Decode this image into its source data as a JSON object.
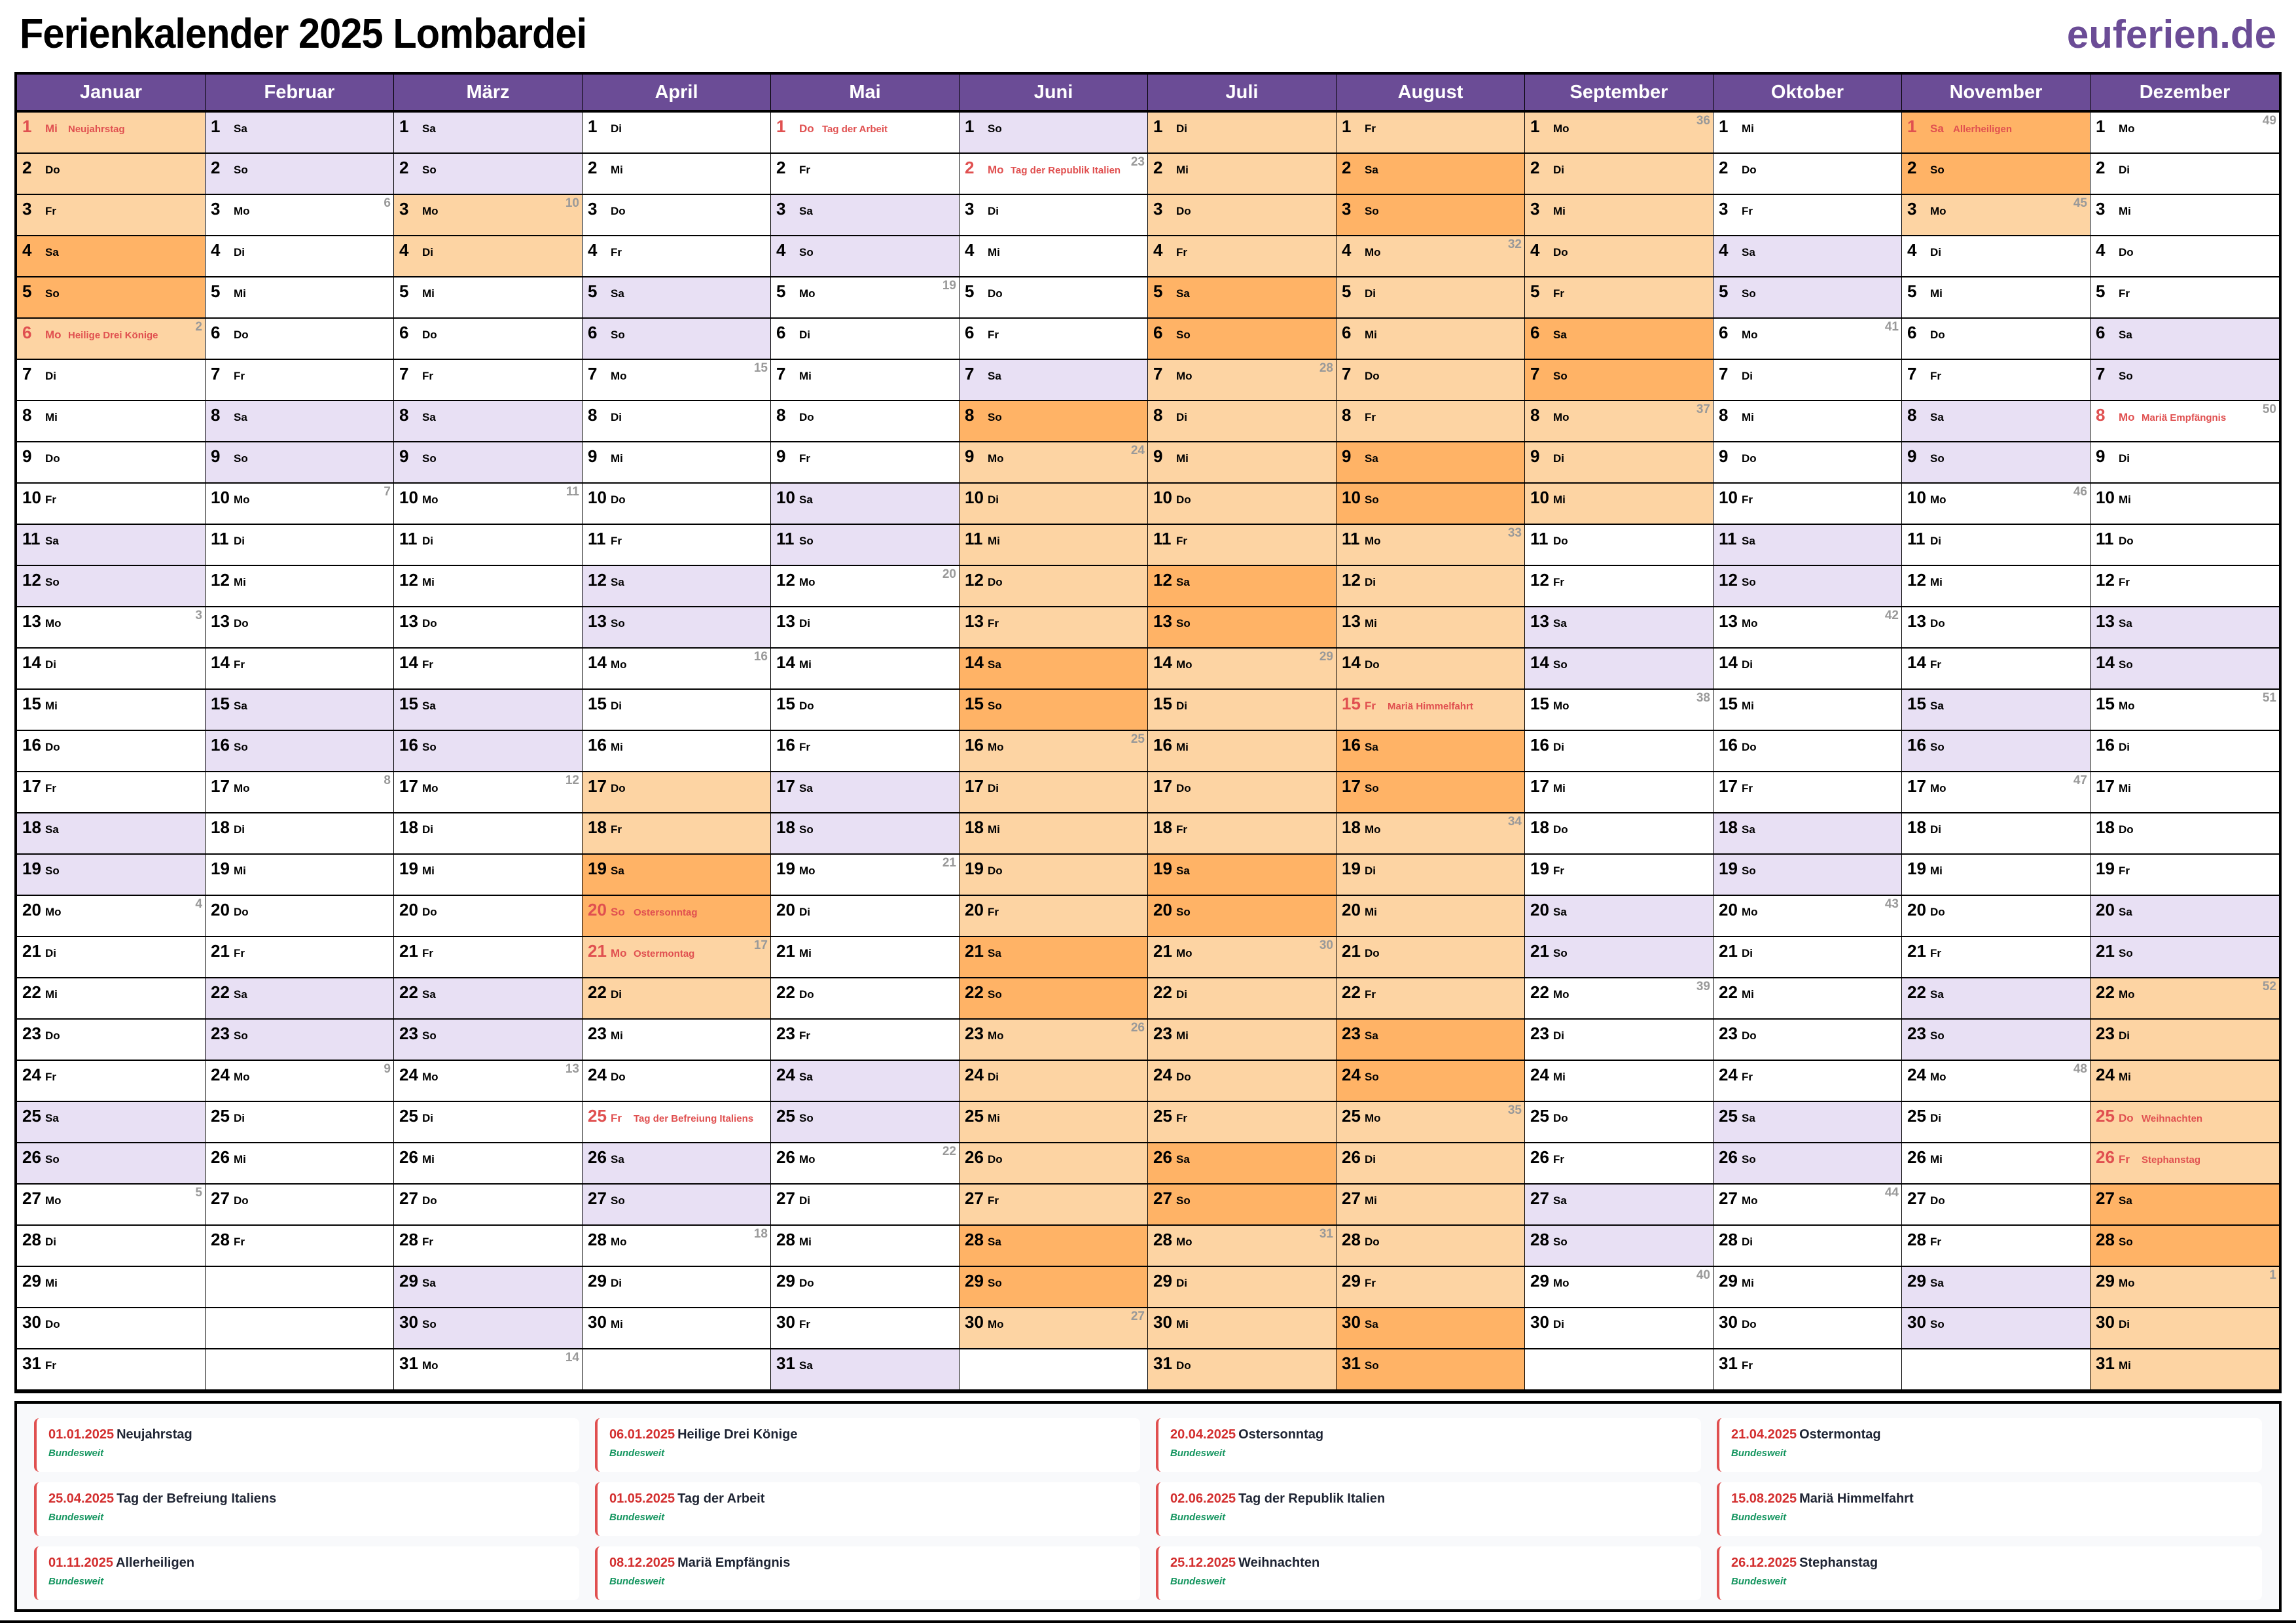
{
  "title": "Ferienkalender 2025 Lombardei",
  "logo": "euferien.de",
  "colors": {
    "header": "#6b4c96",
    "weekend": "#e8e0f4",
    "vacation": "#fdd4a3",
    "vacation_weekend": "#ffb366",
    "holiday_text": "#e05050",
    "week_number": "#999999"
  },
  "months": [
    {
      "name": "Januar",
      "wd": "Mi Do Fr Sa So Mo Di Mi Do Fr Sa So Mo Di Mi Do Fr Sa So Mo Di Mi Do Fr Sa So Mo Di Mi Do Fr",
      "kw": {
        "6": "2",
        "13": "3",
        "20": "4",
        "27": "5"
      },
      "holidays": {
        "1": "Neujahrstag",
        "6": "Heilige Drei Könige"
      },
      "vacation": [
        [
          1,
          6
        ]
      ]
    },
    {
      "name": "Februar",
      "wd": "Sa So Mo Di Mi Do Fr Sa So Mo Di Mi Do Fr Sa So Mo Di Mi Do Fr Sa So Mo Di Mi Do Fr",
      "kw": {
        "3": "6",
        "10": "7",
        "17": "8",
        "24": "9"
      },
      "holidays": {},
      "vacation": []
    },
    {
      "name": "März",
      "wd": "Sa So Mo Di Mi Do Fr Sa So Mo Di Mi Do Fr Sa So Mo Di Mi Do Fr Sa So Mo Di Mi Do Fr Sa So Mo",
      "kw": {
        "3": "10",
        "10": "11",
        "17": "12",
        "24": "13",
        "31": "14"
      },
      "holidays": {},
      "vacation": [
        [
          3,
          4
        ]
      ]
    },
    {
      "name": "April",
      "wd": "Di Mi Do Fr Sa So Mo Di Mi Do Fr Sa So Mo Di Mi Do Fr Sa So Mo Di Mi Do Fr Sa So Mo Di Mi",
      "kw": {
        "7": "15",
        "14": "16",
        "21": "17",
        "28": "18"
      },
      "holidays": {
        "20": "Ostersonntag",
        "21": "Ostermontag",
        "25": "Tag der Befreiung Italiens"
      },
      "vacation": [
        [
          17,
          22
        ]
      ]
    },
    {
      "name": "Mai",
      "wd": "Do Fr Sa So Mo Di Mi Do Fr Sa So Mo Di Mi Do Fr Sa So Mo Di Mi Do Fr Sa So Mo Di Mi Do Fr Sa",
      "kw": {
        "5": "19",
        "12": "20",
        "19": "21",
        "26": "22"
      },
      "holidays": {
        "1": "Tag der Arbeit"
      },
      "vacation": []
    },
    {
      "name": "Juni",
      "wd": "So Mo Di Mi Do Fr Sa So Mo Di Mi Do Fr Sa So Mo Di Mi Do Fr Sa So Mo Di Mi Do Fr Sa So Mo",
      "kw": {
        "2": "23",
        "9": "24",
        "16": "25",
        "23": "26",
        "30": "27"
      },
      "holidays": {
        "2": "Tag der Republik Italien"
      },
      "vacation": [
        [
          8,
          30
        ]
      ]
    },
    {
      "name": "Juli",
      "wd": "Di Mi Do Fr Sa So Mo Di Mi Do Fr Sa So Mo Di Mi Do Fr Sa So Mo Di Mi Do Fr Sa So Mo Di Mi Do",
      "kw": {
        "7": "28",
        "14": "29",
        "21": "30",
        "28": "31"
      },
      "holidays": {},
      "vacation": [
        [
          1,
          31
        ]
      ]
    },
    {
      "name": "August",
      "wd": "Fr Sa So Mo Di Mi Do Fr Sa So Mo Di Mi Do Fr Sa So Mo Di Mi Do Fr Sa So Mo Di Mi Do Fr Sa So",
      "kw": {
        "4": "32",
        "11": "33",
        "18": "34",
        "25": "35"
      },
      "holidays": {
        "15": "Mariä Himmelfahrt"
      },
      "vacation": [
        [
          1,
          31
        ]
      ]
    },
    {
      "name": "September",
      "wd": "Mo Di Mi Do Fr Sa So Mo Di Mi Do Fr Sa So Mo Di Mi Do Fr Sa So Mo Di Mi Do Fr Sa So Mo Di",
      "kw": {
        "1": "36",
        "8": "37",
        "15": "38",
        "22": "39",
        "29": "40"
      },
      "holidays": {},
      "vacation": [
        [
          1,
          10
        ]
      ]
    },
    {
      "name": "Oktober",
      "wd": "Mi Do Fr Sa So Mo Di Mi Do Fr Sa So Mo Di Mi Do Fr Sa So Mo Di Mi Do Fr Sa So Mo Di Mi Do Fr",
      "kw": {
        "6": "41",
        "13": "42",
        "20": "43",
        "27": "44"
      },
      "holidays": {},
      "vacation": []
    },
    {
      "name": "November",
      "wd": "Sa So Mo Di Mi Do Fr Sa So Mo Di Mi Do Fr Sa So Mo Di Mi Do Fr Sa So Mo Di Mi Do Fr Sa So",
      "kw": {
        "3": "45",
        "10": "46",
        "17": "47",
        "24": "48"
      },
      "holidays": {
        "1": "Allerheiligen"
      },
      "vacation": [
        [
          1,
          3
        ]
      ]
    },
    {
      "name": "Dezember",
      "wd": "Mo Di Mi Do Fr Sa So Mo Di Mi Do Fr Sa So Mo Di Mi Do Fr Sa So Mo Di Mi Do Fr Sa So Mo Di Mi",
      "kw": {
        "1": "49",
        "8": "50",
        "15": "51",
        "22": "52",
        "29": "1"
      },
      "holidays": {
        "8": "Mariä Empfängnis",
        "25": "Weihnachten",
        "26": "Stephanstag"
      },
      "vacation": [
        [
          22,
          31
        ]
      ]
    }
  ],
  "legend": [
    {
      "date": "01.01.2025",
      "name": "Neujahrstag",
      "region": "Bundesweit"
    },
    {
      "date": "06.01.2025",
      "name": "Heilige Drei Könige",
      "region": "Bundesweit"
    },
    {
      "date": "20.04.2025",
      "name": "Ostersonntag",
      "region": "Bundesweit"
    },
    {
      "date": "21.04.2025",
      "name": "Ostermontag",
      "region": "Bundesweit"
    },
    {
      "date": "25.04.2025",
      "name": "Tag der Befreiung Italiens",
      "region": "Bundesweit"
    },
    {
      "date": "01.05.2025",
      "name": "Tag der Arbeit",
      "region": "Bundesweit"
    },
    {
      "date": "02.06.2025",
      "name": "Tag der Republik Italien",
      "region": "Bundesweit"
    },
    {
      "date": "15.08.2025",
      "name": "Mariä Himmelfahrt",
      "region": "Bundesweit"
    },
    {
      "date": "01.11.2025",
      "name": "Allerheiligen",
      "region": "Bundesweit"
    },
    {
      "date": "08.12.2025",
      "name": "Mariä Empfängnis",
      "region": "Bundesweit"
    },
    {
      "date": "25.12.2025",
      "name": "Weihnachten",
      "region": "Bundesweit"
    },
    {
      "date": "26.12.2025",
      "name": "Stephanstag",
      "region": "Bundesweit"
    }
  ]
}
